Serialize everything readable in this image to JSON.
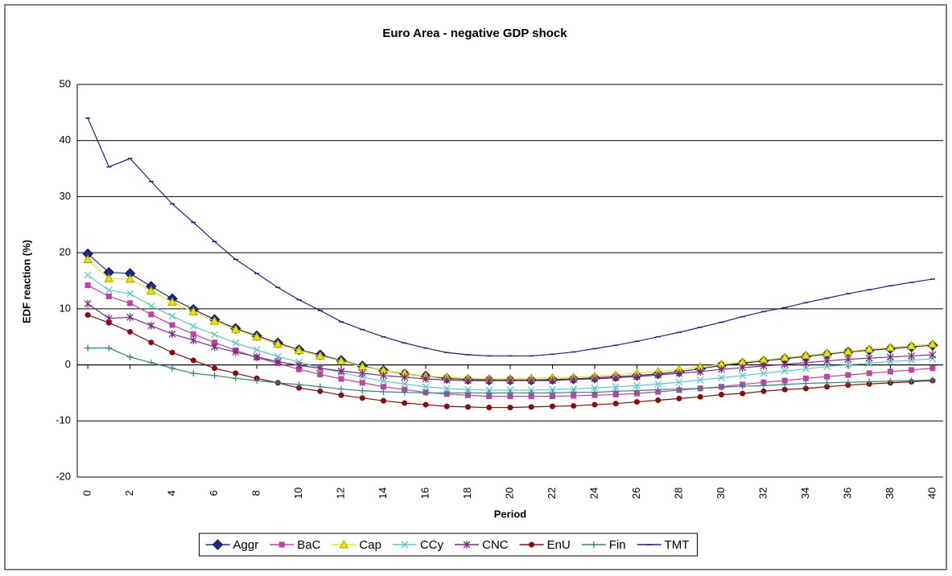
{
  "chart_data": {
    "type": "line",
    "title": "Euro Area - negative GDP shock",
    "x_label": "Period",
    "y_label": "EDF reaction (%)",
    "x": [
      0,
      1,
      2,
      3,
      4,
      5,
      6,
      7,
      8,
      9,
      10,
      11,
      12,
      13,
      14,
      15,
      16,
      17,
      18,
      19,
      20,
      21,
      22,
      23,
      24,
      25,
      26,
      27,
      28,
      29,
      30,
      31,
      32,
      33,
      34,
      35,
      36,
      37,
      38,
      39,
      40
    ],
    "xlim": [
      -0.5,
      40.5
    ],
    "xticks": [
      0,
      2,
      4,
      6,
      8,
      10,
      12,
      14,
      16,
      18,
      20,
      22,
      24,
      26,
      28,
      30,
      32,
      34,
      36,
      38,
      40
    ],
    "ylim": [
      -20,
      50
    ],
    "yticks": [
      -20,
      -10,
      0,
      10,
      20,
      30,
      40,
      50
    ],
    "grid": true,
    "legend": "bottom",
    "series": [
      {
        "name": "Aggr",
        "color": "#1f2a8f",
        "marker": "diamond",
        "values": [
          19.8,
          16.5,
          16.3,
          14,
          11.8,
          9.9,
          8.1,
          6.5,
          5.2,
          3.9,
          2.7,
          1.8,
          0.8,
          -0.2,
          -1,
          -1.6,
          -2,
          -2.4,
          -2.6,
          -2.7,
          -2.7,
          -2.7,
          -2.6,
          -2.5,
          -2.3,
          -2.1,
          -1.9,
          -1.6,
          -1.2,
          -0.7,
          -0.1,
          0.3,
          0.7,
          1.1,
          1.5,
          1.9,
          2.3,
          2.6,
          2.9,
          3.2,
          3.5
        ]
      },
      {
        "name": "BaC",
        "color": "#c040a8",
        "marker": "square",
        "values": [
          14.2,
          12.2,
          11,
          9,
          7.1,
          5.5,
          4,
          2.6,
          1.3,
          0.3,
          -0.8,
          -1.7,
          -2.5,
          -3.2,
          -3.9,
          -4.4,
          -4.9,
          -5.2,
          -5.4,
          -5.6,
          -5.6,
          -5.6,
          -5.6,
          -5.5,
          -5.4,
          -5.3,
          -5.1,
          -4.8,
          -4.5,
          -4.2,
          -3.9,
          -3.5,
          -3.1,
          -2.8,
          -2.4,
          -2.1,
          -1.8,
          -1.5,
          -1.2,
          -0.9,
          -0.6
        ]
      },
      {
        "name": "Cap",
        "color": "#e8e800",
        "marker": "triangle",
        "values": [
          18.8,
          15.4,
          15.3,
          13.2,
          11.2,
          9.5,
          7.8,
          6.3,
          5,
          3.7,
          2.6,
          1.6,
          0.7,
          -0.3,
          -1,
          -1.5,
          -2,
          -2.2,
          -2.4,
          -2.5,
          -2.5,
          -2.4,
          -2.3,
          -2.2,
          -2,
          -1.8,
          -1.5,
          -1.2,
          -0.8,
          -0.4,
          0.1,
          0.5,
          0.9,
          1.3,
          1.7,
          2.1,
          2.4,
          2.8,
          3.1,
          3.4,
          3.7
        ]
      },
      {
        "name": "CCy",
        "color": "#5cc8c8",
        "marker": "x",
        "values": [
          16,
          13.3,
          12.7,
          10.5,
          8.7,
          6.9,
          5.4,
          3.9,
          2.7,
          1.5,
          0.5,
          -0.5,
          -1.4,
          -2.2,
          -2.9,
          -3.4,
          -3.9,
          -4.2,
          -4.4,
          -4.5,
          -4.5,
          -4.5,
          -4.4,
          -4.3,
          -4.1,
          -3.9,
          -3.7,
          -3.4,
          -3.1,
          -2.7,
          -2.3,
          -1.9,
          -1.5,
          -1.1,
          -0.7,
          -0.3,
          0,
          0.3,
          0.6,
          0.8,
          1.1
        ]
      },
      {
        "name": "CNC",
        "color": "#7a2a82",
        "marker": "asterisk",
        "values": [
          10.9,
          8.3,
          8.5,
          7,
          5.5,
          4.4,
          3.2,
          2.3,
          1.4,
          0.6,
          -0.1,
          -0.6,
          -1.1,
          -1.5,
          -1.9,
          -2.2,
          -2.5,
          -2.7,
          -2.8,
          -2.8,
          -2.8,
          -2.8,
          -2.8,
          -2.6,
          -2.5,
          -2.3,
          -2.1,
          -1.8,
          -1.5,
          -1.2,
          -0.8,
          -0.5,
          -0.2,
          0.1,
          0.4,
          0.7,
          1,
          1.2,
          1.4,
          1.6,
          1.8
        ]
      },
      {
        "name": "EnU",
        "color": "#8b0a0a",
        "marker": "circle",
        "values": [
          8.9,
          7.5,
          5.9,
          4,
          2.2,
          0.8,
          -0.6,
          -1.5,
          -2.4,
          -3.2,
          -4.1,
          -4.7,
          -5.4,
          -5.9,
          -6.4,
          -6.8,
          -7.1,
          -7.4,
          -7.5,
          -7.6,
          -7.6,
          -7.5,
          -7.4,
          -7.3,
          -7.1,
          -6.9,
          -6.6,
          -6.3,
          -6,
          -5.7,
          -5.3,
          -5.1,
          -4.7,
          -4.4,
          -4.2,
          -3.9,
          -3.6,
          -3.4,
          -3.2,
          -3,
          -2.8
        ]
      },
      {
        "name": "Fin",
        "color": "#2a8a80",
        "marker": "plus",
        "values": [
          3,
          3,
          1.4,
          0.4,
          -0.6,
          -1.5,
          -1.9,
          -2.4,
          -2.8,
          -3.2,
          -3.5,
          -3.9,
          -4.3,
          -4.6,
          -4.8,
          -4.9,
          -5,
          -5,
          -5,
          -5,
          -5,
          -5,
          -5,
          -4.9,
          -4.9,
          -4.7,
          -4.6,
          -4.4,
          -4.3,
          -4.2,
          -4,
          -3.8,
          -3.7,
          -3.5,
          -3.3,
          -3.2,
          -3.1,
          -3,
          -2.9,
          -2.8,
          -2.7
        ]
      },
      {
        "name": "TMT",
        "color": "#1f1f8f",
        "marker": "dash",
        "values": [
          44,
          35.3,
          36.8,
          32.7,
          28.7,
          25.4,
          22,
          18.8,
          16.3,
          13.8,
          11.6,
          9.7,
          7.7,
          6.3,
          5,
          3.9,
          3,
          2.2,
          1.8,
          1.6,
          1.6,
          1.6,
          1.9,
          2.3,
          2.9,
          3.5,
          4.2,
          5,
          5.8,
          6.7,
          7.6,
          8.6,
          9.5,
          10.2,
          11.1,
          11.9,
          12.7,
          13.4,
          14.1,
          14.7,
          15.3
        ]
      }
    ]
  }
}
